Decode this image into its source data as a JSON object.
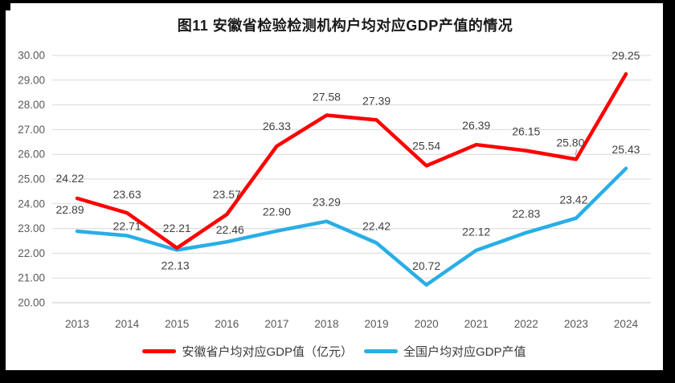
{
  "title": "图11 安徽省检验检测机构户均对应GDP产值的情况",
  "chart_data": {
    "type": "line",
    "categories": [
      "2013",
      "2014",
      "2015",
      "2016",
      "2017",
      "2018",
      "2019",
      "2020",
      "2021",
      "2022",
      "2023",
      "2024"
    ],
    "series": [
      {
        "name": "安徽省户均对应GDP值（亿元）",
        "color": "#FE0000",
        "values": [
          24.22,
          23.63,
          22.21,
          23.57,
          26.33,
          27.58,
          27.39,
          25.54,
          26.39,
          26.15,
          25.8,
          29.25
        ]
      },
      {
        "name": "全国户均对应GDP产值",
        "color": "#29AEE6",
        "values": [
          22.89,
          22.71,
          22.13,
          22.46,
          22.9,
          23.29,
          22.42,
          20.72,
          22.12,
          22.83,
          23.42,
          25.43
        ]
      }
    ],
    "title": "图11 安徽省检验检测机构户均对应GDP产值的情况",
    "xlabel": "",
    "ylabel": "",
    "ylim": [
      20.0,
      30.0
    ],
    "ytick_step": 1.0,
    "ytick_labels": [
      "30.00",
      "29.00",
      "28.00",
      "27.00",
      "26.00",
      "25.00",
      "24.00",
      "23.00",
      "22.00",
      "21.00",
      "20.00"
    ],
    "grid": true,
    "data_labels": true,
    "legend_position": "bottom"
  },
  "colors": {
    "frame": "#000000",
    "background": "#FFFFFF",
    "gridline": "#D9D9D9",
    "axis_line": "#C9C9C9",
    "axis_text": "#595959",
    "data_label_text": "#404040",
    "leader_line": "#A6A6A6"
  }
}
